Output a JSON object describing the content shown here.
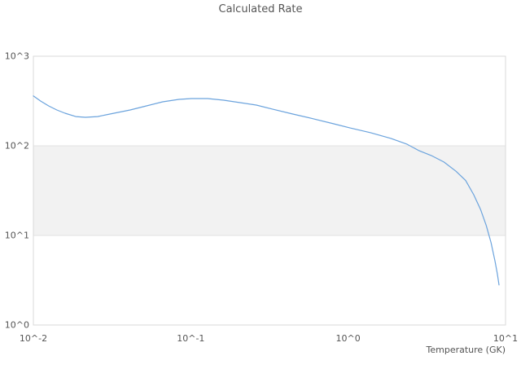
{
  "chart_data": {
    "type": "line",
    "title": "Calculated Rate",
    "xlabel": "Temperature (GK)",
    "ylabel": "",
    "xscale": "log",
    "yscale": "log",
    "xlim": [
      0.01,
      10
    ],
    "ylim": [
      1,
      1000
    ],
    "grid": "off",
    "legend": "none",
    "x_ticks": [
      {
        "value": 0.01,
        "label": "10^-2"
      },
      {
        "value": 0.1,
        "label": "10^-1"
      },
      {
        "value": 1,
        "label": "10^0"
      },
      {
        "value": 10,
        "label": "10^1"
      }
    ],
    "y_ticks": [
      {
        "value": 1,
        "label": "10^0"
      },
      {
        "value": 10,
        "label": "10^1"
      },
      {
        "value": 100,
        "label": "10^2"
      },
      {
        "value": 1000,
        "label": "10^3"
      }
    ],
    "highlight_band": {
      "y_from": 10,
      "y_to": 100
    },
    "series": [
      {
        "name": "calculated_rate",
        "x": [
          0.01,
          0.0111,
          0.0125,
          0.0141,
          0.0159,
          0.0186,
          0.0214,
          0.0256,
          0.0325,
          0.0412,
          0.0523,
          0.0663,
          0.0841,
          0.101,
          0.128,
          0.162,
          0.206,
          0.261,
          0.332,
          0.445,
          0.603,
          0.81,
          1.03,
          1.39,
          1.87,
          2.37,
          2.83,
          3.37,
          4.06,
          4.84,
          5.58,
          6.28,
          6.94,
          7.54,
          8.09,
          8.57,
          8.88,
          9.09
        ],
        "y": [
          360,
          316,
          279,
          251,
          231,
          212,
          208,
          212,
          231,
          251,
          279,
          310,
          330,
          337,
          337,
          323,
          303,
          285,
          256,
          226,
          200,
          176,
          158,
          140,
          121,
          104,
          88,
          78,
          66,
          52,
          41,
          28.5,
          19.5,
          12.9,
          8.3,
          5.2,
          3.7,
          2.8
        ]
      }
    ]
  },
  "colors": {
    "series_line": "#6ba3dd",
    "band_fill": "#f2f2f2",
    "band_edge": "#e2e2e2",
    "plot_border": "#d9d9d9",
    "text": "#545454",
    "background": "#ffffff"
  }
}
